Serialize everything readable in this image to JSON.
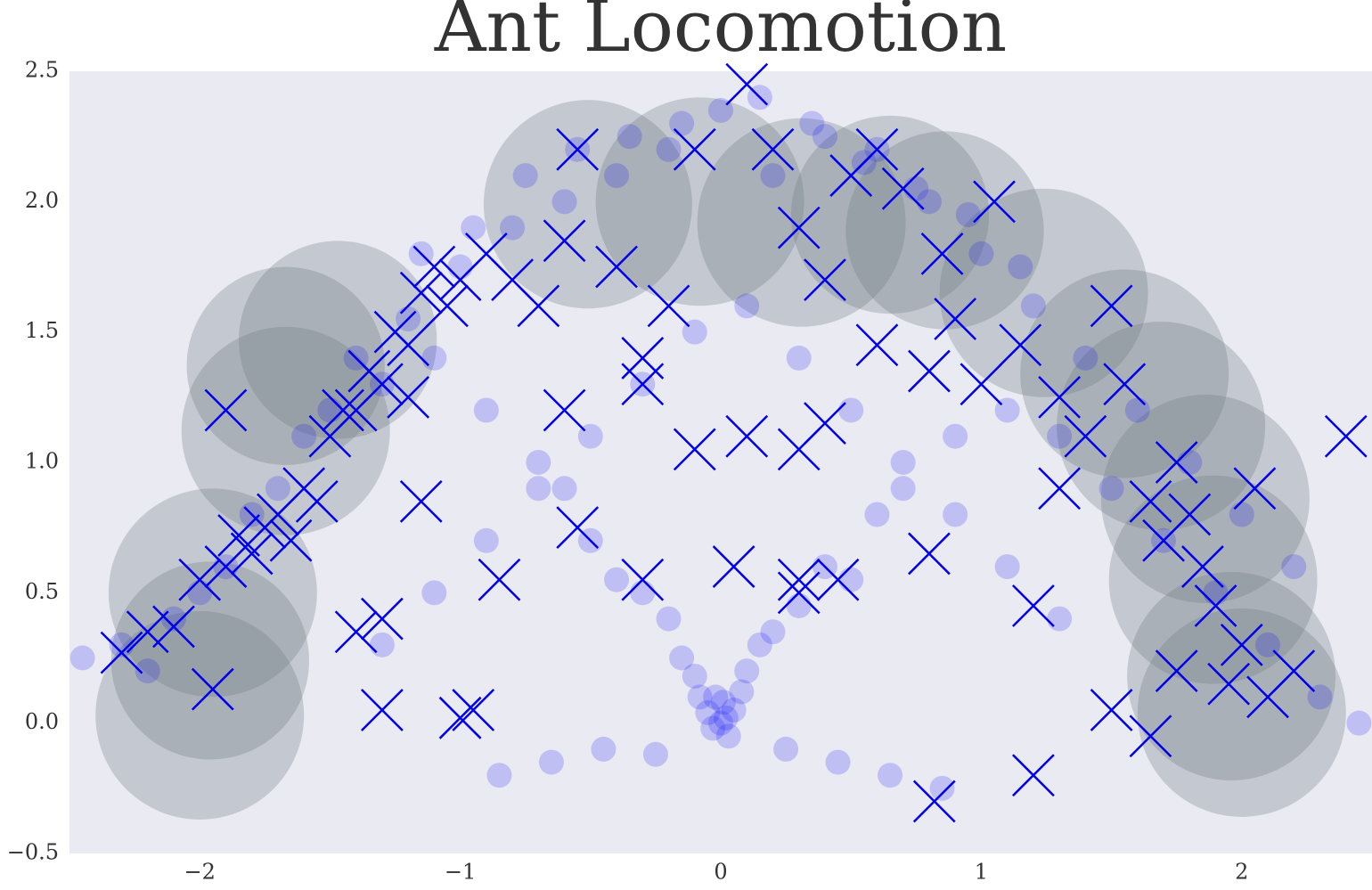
{
  "chart_data": {
    "type": "scatter",
    "title": "Ant Locomotion",
    "xlim": [
      -2.5,
      2.5
    ],
    "ylim": [
      -0.5,
      2.5
    ],
    "xticks": [
      {
        "value": -2,
        "label": "−2"
      },
      {
        "value": -1,
        "label": "−1"
      },
      0,
      1,
      2
    ],
    "yticks": [
      {
        "value": -0.5,
        "label": "−0.5"
      },
      {
        "value": 0,
        "label": "0.0"
      },
      0.5,
      {
        "value": 1,
        "label": "1.0"
      },
      1.5,
      {
        "value": 2,
        "label": "2.0"
      },
      2.5
    ],
    "grid": false,
    "series": [
      {
        "marker": "circle",
        "color": "#6c7a80",
        "x": [
          -2.0,
          -1.96,
          -1.95,
          -1.67,
          -1.67,
          -1.47,
          -0.51,
          -0.08,
          0.31,
          0.65,
          0.86,
          1.24,
          1.55,
          1.69,
          1.86,
          1.89,
          1.96,
          2.0
        ],
        "values": [
          0.03,
          0.24,
          0.5,
          1.12,
          1.37,
          1.47,
          1.99,
          2.0,
          1.92,
          1.95,
          1.89,
          1.65,
          1.34,
          1.14,
          0.86,
          0.55,
          0.18,
          0.04
        ],
        "sizes": [
          0.4,
          0.38,
          0.4,
          0.4,
          0.38,
          0.38,
          0.4,
          0.4,
          0.4,
          0.38,
          0.38,
          0.4,
          0.4,
          0.4,
          0.4,
          0.4,
          0.4,
          0.4
        ]
      },
      {
        "marker": "dot",
        "color": "#0000ff",
        "x": [
          0,
          0.02,
          -0.03,
          0.05,
          -0.05,
          0.01,
          0.03,
          -0.02,
          0.08,
          -0.08,
          0.1,
          -0.1,
          0.15,
          -0.15,
          0.2,
          -0.2,
          0.3,
          -0.3,
          0.4,
          -0.4,
          0.5,
          -0.5,
          0.6,
          -0.6,
          0.7,
          -0.7,
          0.9,
          -0.9,
          1.1,
          -1.1,
          1.3,
          -1.3,
          1.5,
          -1.5,
          1.7,
          -1.7,
          1.9,
          -1.9,
          2.1,
          -2.1,
          2.3,
          -2.3,
          2.45,
          -2.45,
          0.2,
          -0.2,
          0.4,
          -0.4,
          0.6,
          -0.6,
          0.8,
          -0.8,
          1.0,
          -1.0,
          1.2,
          -1.2,
          1.4,
          -1.4,
          1.6,
          -1.6,
          1.8,
          -1.8,
          2.0,
          -2.0,
          2.2,
          -2.2,
          0.1,
          -0.1,
          0.3,
          -0.3,
          0.5,
          -0.5,
          0.7,
          -0.7,
          0.9,
          -0.9,
          1.1,
          -1.1,
          1.3,
          -1.3,
          0.0,
          0.15,
          -0.15,
          0.35,
          -0.35,
          0.55,
          -0.55,
          0.75,
          -0.75,
          0.95,
          -0.95,
          1.15,
          -1.15,
          0.25,
          -0.25,
          0.45,
          -0.45,
          0.65,
          -0.65,
          0.85,
          -0.85
        ],
        "values": [
          0,
          0.02,
          -0.02,
          0.05,
          0.04,
          0.08,
          -0.05,
          0.1,
          0.12,
          0.1,
          0.2,
          0.18,
          0.3,
          0.25,
          0.35,
          0.4,
          0.45,
          0.5,
          0.6,
          0.55,
          0.55,
          0.7,
          0.8,
          0.9,
          0.9,
          1.0,
          1.1,
          1.2,
          1.2,
          1.4,
          1.1,
          1.3,
          0.9,
          1.2,
          0.7,
          0.9,
          0.5,
          0.6,
          0.3,
          0.4,
          0.1,
          0.3,
          0.0,
          0.25,
          2.1,
          2.2,
          2.25,
          2.1,
          2.2,
          2.0,
          2.0,
          1.9,
          1.8,
          1.75,
          1.6,
          1.55,
          1.4,
          1.4,
          1.2,
          1.1,
          1.0,
          0.8,
          0.8,
          0.5,
          0.6,
          0.2,
          1.6,
          1.5,
          1.4,
          1.3,
          1.2,
          1.1,
          1.0,
          0.9,
          0.8,
          0.7,
          0.6,
          0.5,
          0.4,
          0.3,
          2.35,
          2.4,
          2.3,
          2.3,
          2.25,
          2.15,
          2.2,
          2.05,
          2.1,
          1.95,
          1.9,
          1.75,
          1.8,
          -0.1,
          -0.12,
          -0.15,
          -0.1,
          -0.2,
          -0.15,
          -0.25,
          -0.2
        ]
      },
      {
        "marker": "x",
        "color": "#0000ee",
        "x": [
          -2.3,
          -2.1,
          -2.2,
          -2.0,
          -1.95,
          -1.9,
          -1.85,
          -1.8,
          -1.75,
          -1.7,
          -1.65,
          -1.6,
          -1.55,
          -1.5,
          -1.45,
          -1.4,
          -1.35,
          -1.3,
          -1.9,
          -1.25,
          -1.2,
          -1.15,
          -1.1,
          -1.05,
          -1.0,
          -0.9,
          -0.8,
          -0.7,
          -0.6,
          -0.55,
          -0.4,
          -0.3,
          -0.2,
          -0.1,
          0.1,
          0.2,
          0.3,
          0.4,
          0.5,
          0.6,
          0.7,
          0.85,
          0.9,
          1.0,
          1.05,
          1.15,
          1.3,
          1.4,
          1.5,
          1.55,
          1.65,
          1.7,
          1.75,
          1.8,
          1.85,
          1.9,
          2.0,
          1.95,
          2.1,
          2.05,
          2.2,
          2.4,
          1.75,
          1.5,
          1.65,
          1.2,
          0.82,
          1.2,
          0.8,
          0.45,
          0.3,
          0.05,
          -0.3,
          -0.55,
          -0.85,
          -0.95,
          -1.0,
          -1.3,
          -1.4,
          -1.3,
          -0.6,
          -0.3,
          0.1,
          0.4,
          0.3,
          -1.2,
          -1.15,
          0.6,
          0.8,
          -0.1,
          1.3,
          0.3
        ],
        "values": [
          0.27,
          0.37,
          0.35,
          0.55,
          0.13,
          0.6,
          0.72,
          0.65,
          0.75,
          0.8,
          0.7,
          0.9,
          0.85,
          1.1,
          1.2,
          1.2,
          1.35,
          1.3,
          1.2,
          1.5,
          1.45,
          1.65,
          1.75,
          1.6,
          1.7,
          1.8,
          1.7,
          1.6,
          1.85,
          2.2,
          1.75,
          1.4,
          1.6,
          2.2,
          2.45,
          2.2,
          1.9,
          1.7,
          2.1,
          2.2,
          2.05,
          1.8,
          1.55,
          1.3,
          2.0,
          1.45,
          1.25,
          1.1,
          1.6,
          1.3,
          0.85,
          0.7,
          1.0,
          0.8,
          0.6,
          0.45,
          0.3,
          0.15,
          0.1,
          0.9,
          0.2,
          1.1,
          0.2,
          0.05,
          -0.05,
          -0.2,
          -0.3,
          0.45,
          0.65,
          0.55,
          0.55,
          0.6,
          0.55,
          0.75,
          0.55,
          0.05,
          0.02,
          0.05,
          0.35,
          0.4,
          1.2,
          1.3,
          1.1,
          1.15,
          1.05,
          1.25,
          0.85,
          1.45,
          1.35,
          1.05,
          0.9,
          0.5
        ]
      }
    ]
  }
}
